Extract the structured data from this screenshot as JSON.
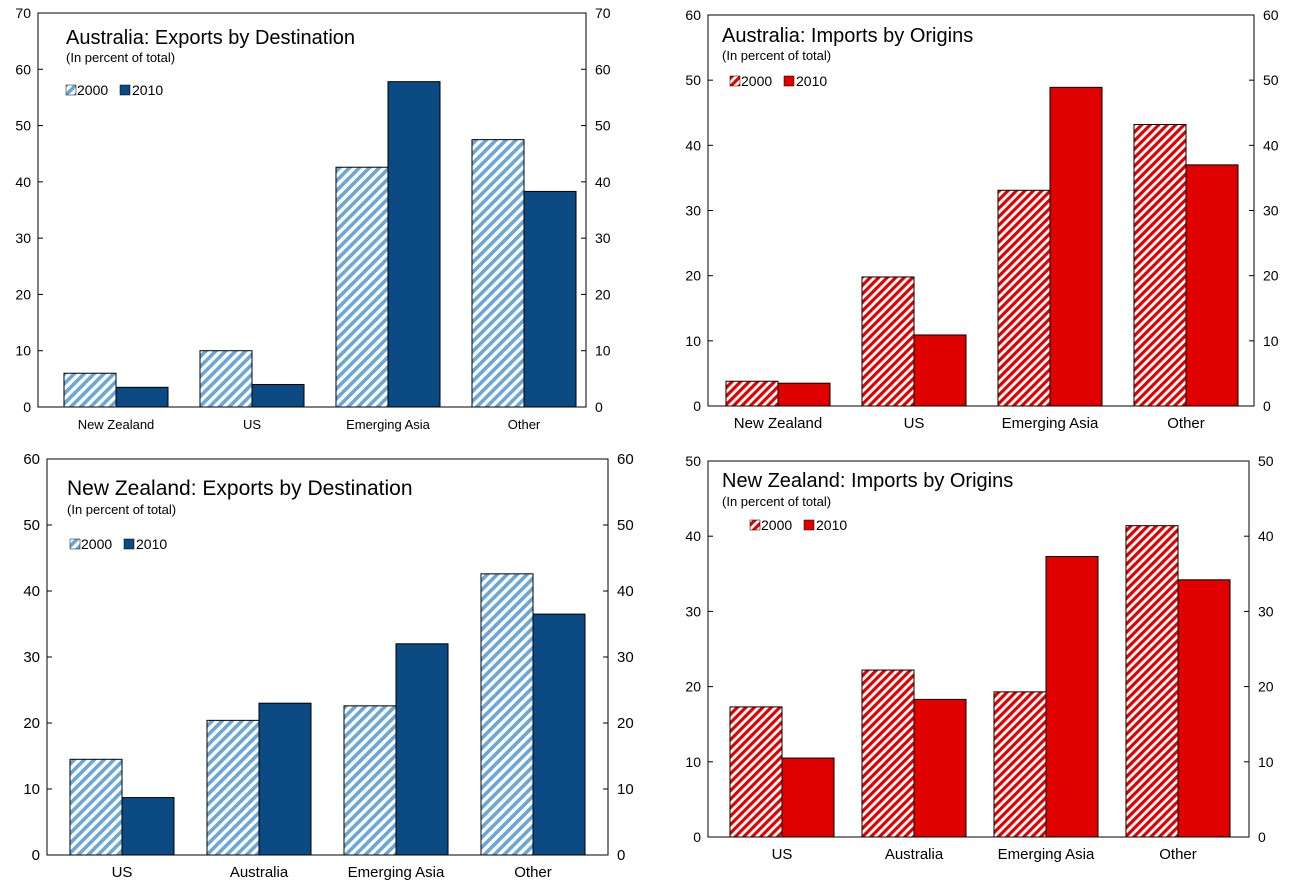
{
  "colors": {
    "blue_light": "#6aa6d8",
    "blue_dark": "#0b4a83",
    "red": "#e00000"
  },
  "chart_data": [
    {
      "type": "bar",
      "title": "Australia: Exports by Destination",
      "subtitle": "(In percent of total)",
      "categories": [
        "New Zealand",
        "US",
        "Emerging Asia",
        "Other"
      ],
      "series": [
        {
          "name": "2000",
          "values": [
            6.0,
            10.0,
            42.6,
            47.5
          ]
        },
        {
          "name": "2010",
          "values": [
            3.5,
            4.0,
            57.8,
            38.3
          ]
        }
      ],
      "ylim": [
        0,
        70
      ],
      "yticks": [
        "0",
        "10",
        "20",
        "30",
        "40",
        "50",
        "60",
        "70"
      ],
      "grid": false,
      "legend_position": "top-left",
      "palette": "blue"
    },
    {
      "type": "bar",
      "title": "Australia: Imports by Origins",
      "subtitle": "(In percent of total)",
      "categories": [
        "New Zealand",
        "US",
        "Emerging Asia",
        "Other"
      ],
      "series": [
        {
          "name": "2000",
          "values": [
            3.8,
            19.8,
            33.1,
            43.2
          ]
        },
        {
          "name": "2010",
          "values": [
            3.5,
            10.9,
            48.9,
            37.0
          ]
        }
      ],
      "ylim": [
        0,
        60
      ],
      "yticks": [
        "0",
        "10",
        "20",
        "30",
        "40",
        "50",
        "60"
      ],
      "grid": false,
      "legend_position": "top-left",
      "palette": "red"
    },
    {
      "type": "bar",
      "title": "New Zealand: Exports by Destination",
      "subtitle": "(In percent of total)",
      "categories": [
        "US",
        "Australia",
        "Emerging Asia",
        "Other"
      ],
      "series": [
        {
          "name": "2000",
          "values": [
            14.5,
            20.4,
            22.6,
            42.6
          ]
        },
        {
          "name": "2010",
          "values": [
            8.7,
            23.0,
            32.0,
            36.5
          ]
        }
      ],
      "ylim": [
        0,
        60
      ],
      "yticks": [
        "0",
        "10",
        "20",
        "30",
        "40",
        "50",
        "60"
      ],
      "grid": false,
      "legend_position": "top-left",
      "palette": "blue"
    },
    {
      "type": "bar",
      "title": "New Zealand: Imports by Origins",
      "subtitle": "(In percent of total)",
      "categories": [
        "US",
        "Australia",
        "Emerging Asia",
        "Other"
      ],
      "series": [
        {
          "name": "2000",
          "values": [
            17.3,
            22.2,
            19.3,
            41.4
          ]
        },
        {
          "name": "2010",
          "values": [
            10.5,
            18.3,
            37.3,
            34.2
          ]
        }
      ],
      "ylim": [
        0,
        50
      ],
      "yticks": [
        "0",
        "10",
        "20",
        "30",
        "40",
        "50"
      ],
      "grid": false,
      "legend_position": "top-left",
      "palette": "red"
    }
  ]
}
